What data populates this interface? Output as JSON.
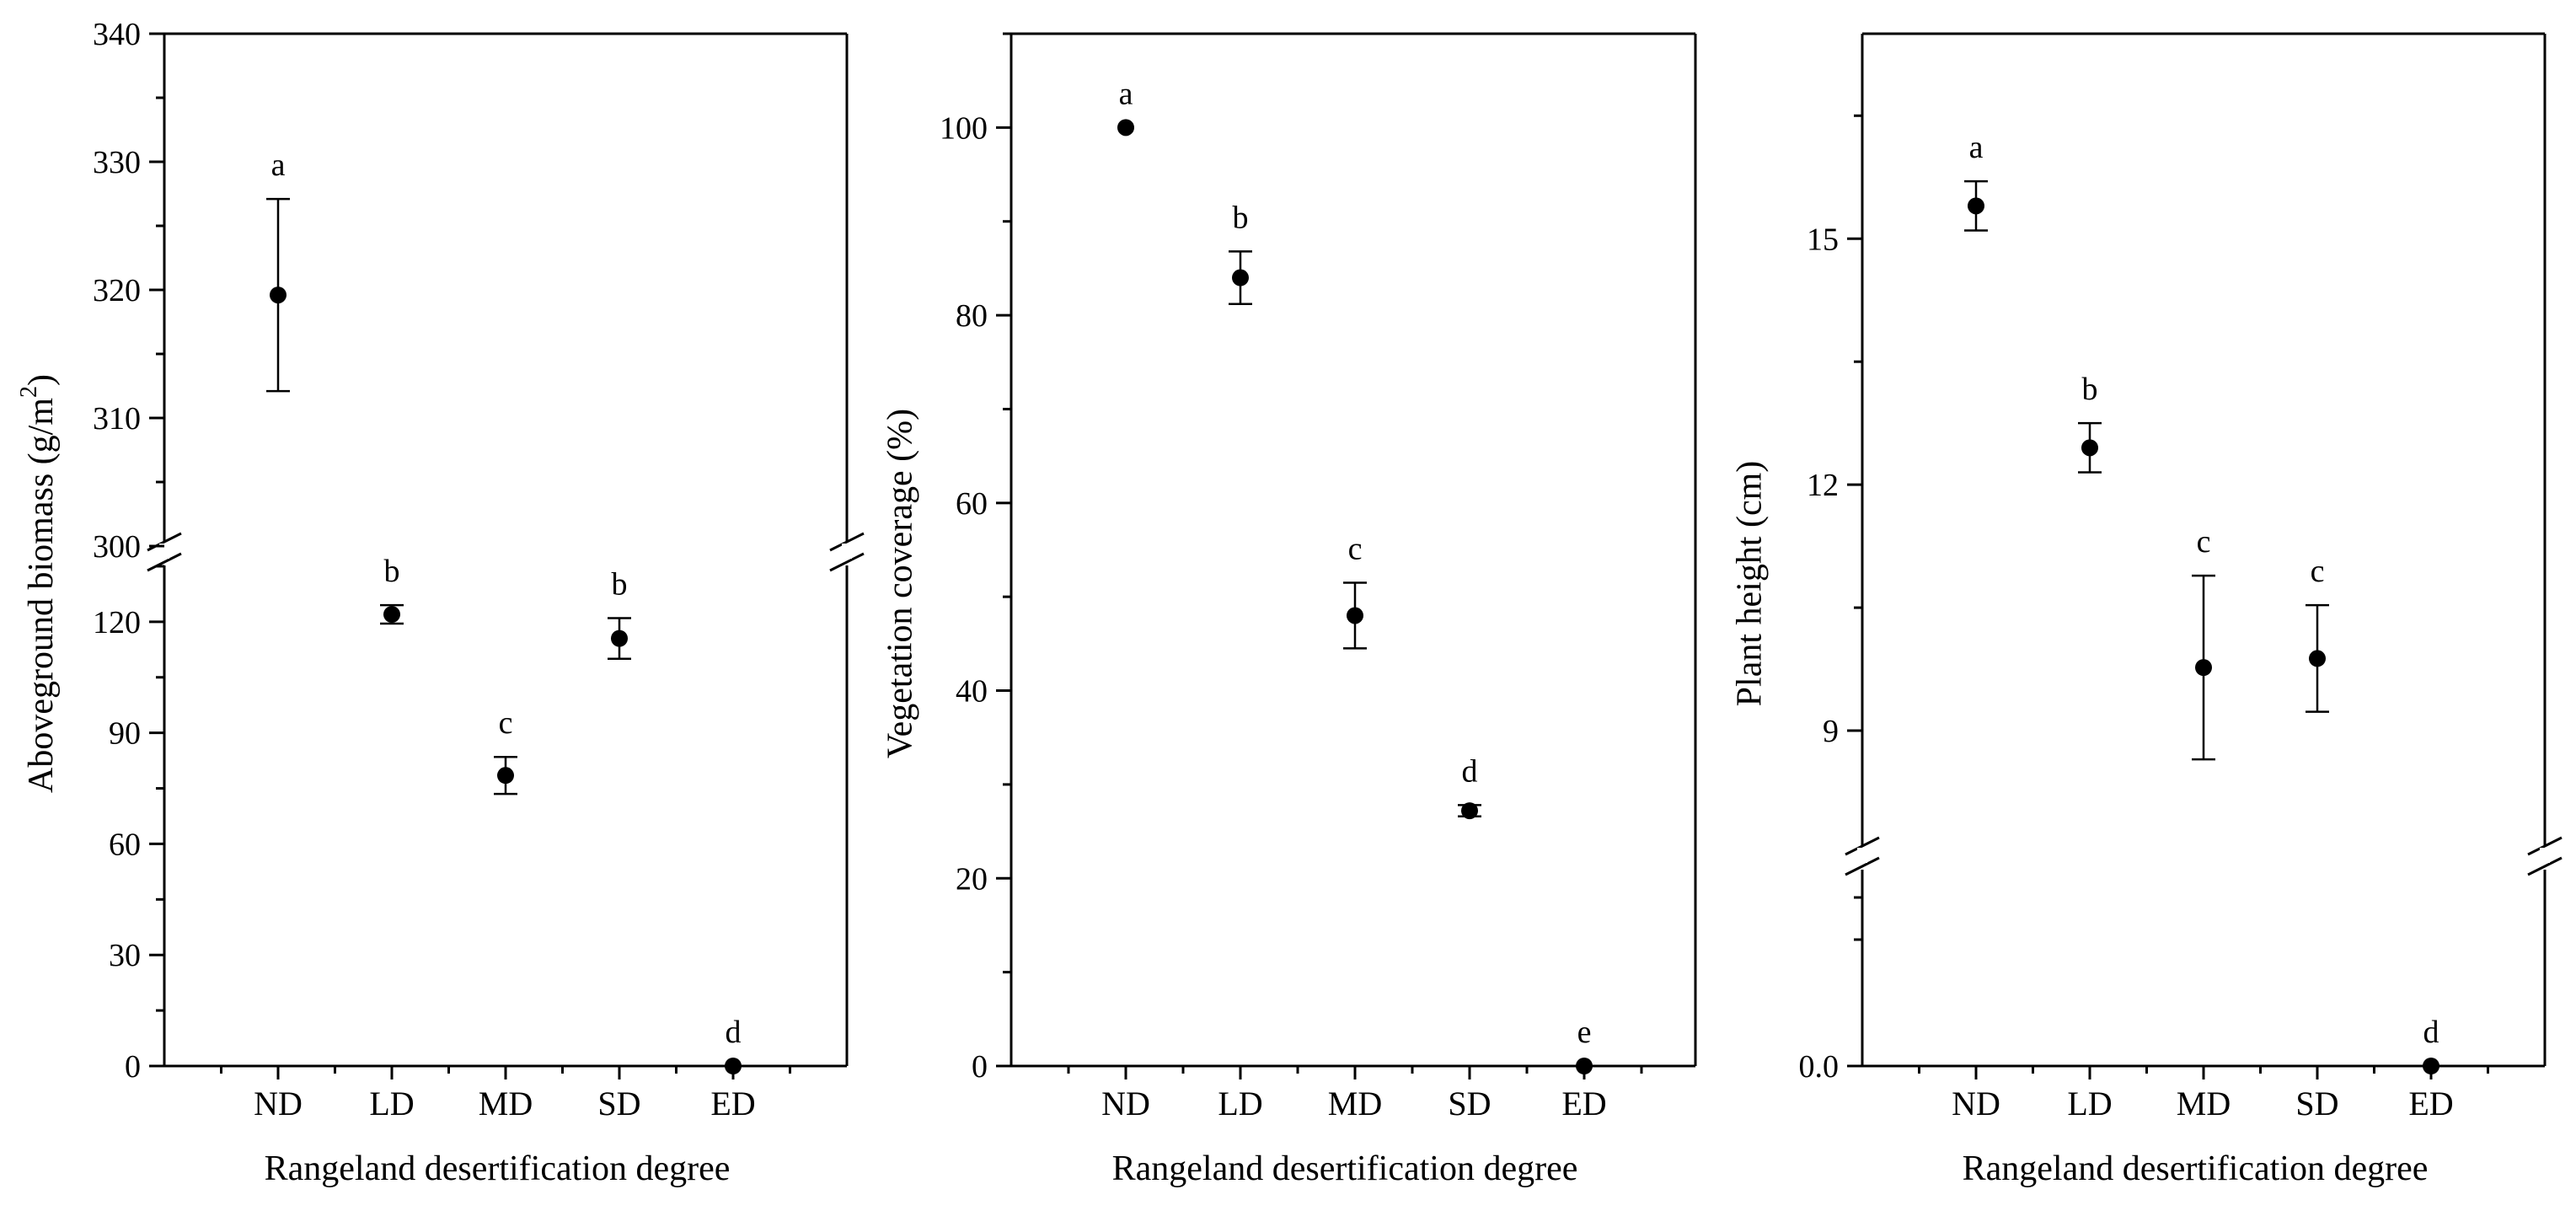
{
  "chart_data": [
    {
      "type": "scatter",
      "xlabel": "Rangeland desertification degree",
      "ylabel": "Aboveground biomass (g/m²)",
      "categories": [
        "ND",
        "LD",
        "MD",
        "SD",
        "ED"
      ],
      "values": [
        319.6,
        122,
        78.5,
        115.5,
        0
      ],
      "errors": [
        7.5,
        2.5,
        5,
        5.5,
        0
      ],
      "letters": [
        "a",
        "b",
        "c",
        "b",
        "d"
      ],
      "axis_break": {
        "lower": [
          0,
          140
        ],
        "upper": [
          300,
          340
        ]
      },
      "y_ticks_lower": [
        "0",
        "30",
        "60",
        "90",
        "120"
      ],
      "y_ticks_upper": [
        "300",
        "310",
        "320",
        "330",
        "340"
      ],
      "grid": false,
      "legend": "none"
    },
    {
      "type": "scatter",
      "xlabel": "Rangeland desertification degree",
      "ylabel": "Vegetation coverage (%)",
      "categories": [
        "ND",
        "LD",
        "MD",
        "SD",
        "ED"
      ],
      "values": [
        100,
        84,
        48,
        27.2,
        0
      ],
      "errors": [
        0,
        2.8,
        3.5,
        0.6,
        0
      ],
      "letters": [
        "a",
        "b",
        "c",
        "d",
        "e"
      ],
      "ylim": [
        0,
        110
      ],
      "y_ticks": [
        "0",
        "20",
        "40",
        "60",
        "80",
        "100"
      ],
      "grid": false,
      "legend": "none"
    },
    {
      "type": "scatter",
      "xlabel": "Rangeland desertification degree",
      "ylabel": "Plant height (cm)",
      "categories": [
        "ND",
        "LD",
        "MD",
        "SD",
        "ED"
      ],
      "values": [
        15.4,
        12.45,
        9.77,
        9.88,
        0
      ],
      "errors": [
        0.3,
        0.3,
        1.12,
        0.65,
        0
      ],
      "letters": [
        "a",
        "b",
        "c",
        "c",
        "d"
      ],
      "axis_break": {
        "lower": [
          0,
          2.5
        ],
        "upper": [
          7.5,
          17.5
        ]
      },
      "y_ticks_lower": [
        "0.0"
      ],
      "y_ticks_upper": [
        "9",
        "12",
        "15"
      ],
      "grid": false,
      "legend": "none"
    }
  ]
}
